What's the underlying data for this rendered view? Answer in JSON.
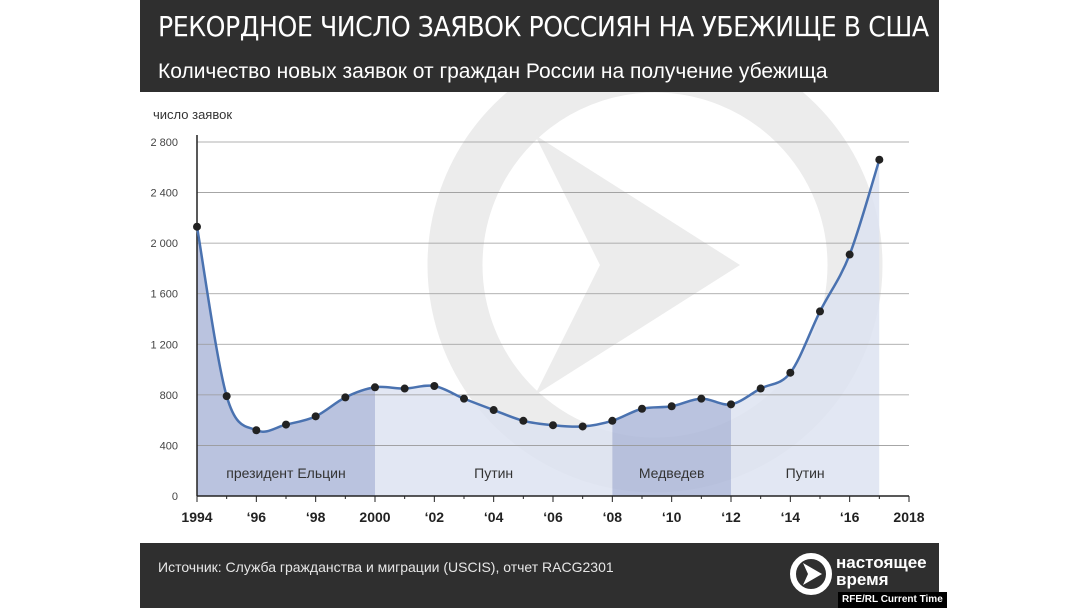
{
  "header": {
    "title": "РЕКОРДНОЕ ЧИСЛО ЗАЯВОК РОССИЯН НА УБЕЖИЩЕ В США",
    "subtitle": "Количество новых заявок от граждан России на получение убежища"
  },
  "footer": {
    "source": "Источник: Служба гражданства и миграции (USCIS), отчет RACG2301",
    "logo_line1": "настоящее",
    "logo_line2": "время",
    "credit": "RFE/RL Current Time"
  },
  "colors": {
    "dark": "#2f2f2f",
    "line": "#4a72b0",
    "point": "#222222",
    "band_dark": "#aeb9d9",
    "band_light": "#dde3f1",
    "grid": "#999999",
    "watermark": "#ececec"
  },
  "chart_data": {
    "type": "line",
    "ylabel": "число заявок",
    "ylim": [
      0,
      2800
    ],
    "yticks": [
      0,
      400,
      800,
      1200,
      1600,
      2000,
      2400,
      2800
    ],
    "ytick_labels": [
      "0",
      "400",
      "800",
      "1 200",
      "1 600",
      "2 000",
      "2 400",
      "2 800"
    ],
    "xlim": [
      1994,
      2018
    ],
    "xticks": [
      1994,
      1996,
      1998,
      2000,
      2002,
      2004,
      2006,
      2008,
      2010,
      2012,
      2014,
      2016,
      2018
    ],
    "xtick_labels": [
      "1994",
      "‘96",
      "‘98",
      "2000",
      "‘02",
      "‘04",
      "‘06",
      "‘08",
      "‘10",
      "‘12",
      "‘14",
      "‘16",
      "2018"
    ],
    "grid": true,
    "x": [
      1994,
      1995,
      1996,
      1997,
      1998,
      1999,
      2000,
      2001,
      2002,
      2003,
      2004,
      2005,
      2006,
      2007,
      2008,
      2009,
      2010,
      2011,
      2012,
      2013,
      2014,
      2015,
      2016,
      2017
    ],
    "y": [
      2130,
      790,
      520,
      565,
      630,
      780,
      860,
      850,
      870,
      770,
      680,
      595,
      560,
      550,
      595,
      690,
      710,
      770,
      725,
      850,
      975,
      1460,
      1910,
      2660
    ],
    "bands": [
      {
        "label": "президент  Ельцин",
        "from": 1994,
        "to": 2000,
        "shade": "dark"
      },
      {
        "label": "Путин",
        "from": 2000,
        "to": 2008,
        "shade": "light"
      },
      {
        "label": "Медведев",
        "from": 2008,
        "to": 2012,
        "shade": "dark"
      },
      {
        "label": "Путин",
        "from": 2012,
        "to": 2017,
        "shade": "light"
      }
    ]
  }
}
